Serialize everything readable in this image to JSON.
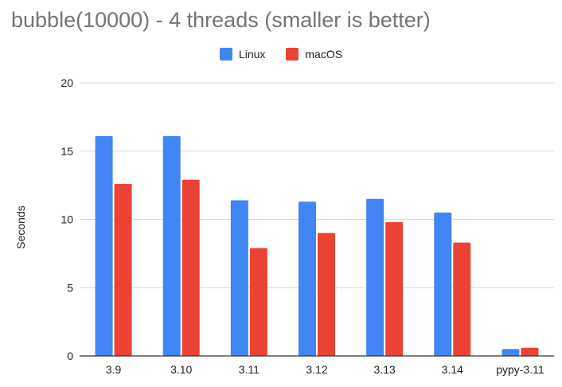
{
  "colors": {
    "linux": "#4285F4",
    "macos": "#EA4335",
    "grid": "#d9d9d9",
    "axis": "#333333",
    "title": "#757575"
  },
  "chart_data": {
    "type": "bar",
    "title": "bubble(10000) - 4 threads (smaller is better)",
    "xlabel": "",
    "ylabel": "Seconds",
    "ylim": [
      0,
      20
    ],
    "yticks": [
      0,
      5,
      10,
      15,
      20
    ],
    "grid": true,
    "legend_position": "top-center",
    "categories": [
      "3.9",
      "3.10",
      "3.11",
      "3.12",
      "3.13",
      "3.14",
      "pypy-3.11"
    ],
    "series": [
      {
        "name": "Linux",
        "values": [
          16.1,
          16.1,
          11.4,
          11.3,
          11.5,
          10.5,
          0.5
        ]
      },
      {
        "name": "macOS",
        "values": [
          12.6,
          12.9,
          7.9,
          9.0,
          9.8,
          8.3,
          0.6
        ]
      }
    ]
  }
}
